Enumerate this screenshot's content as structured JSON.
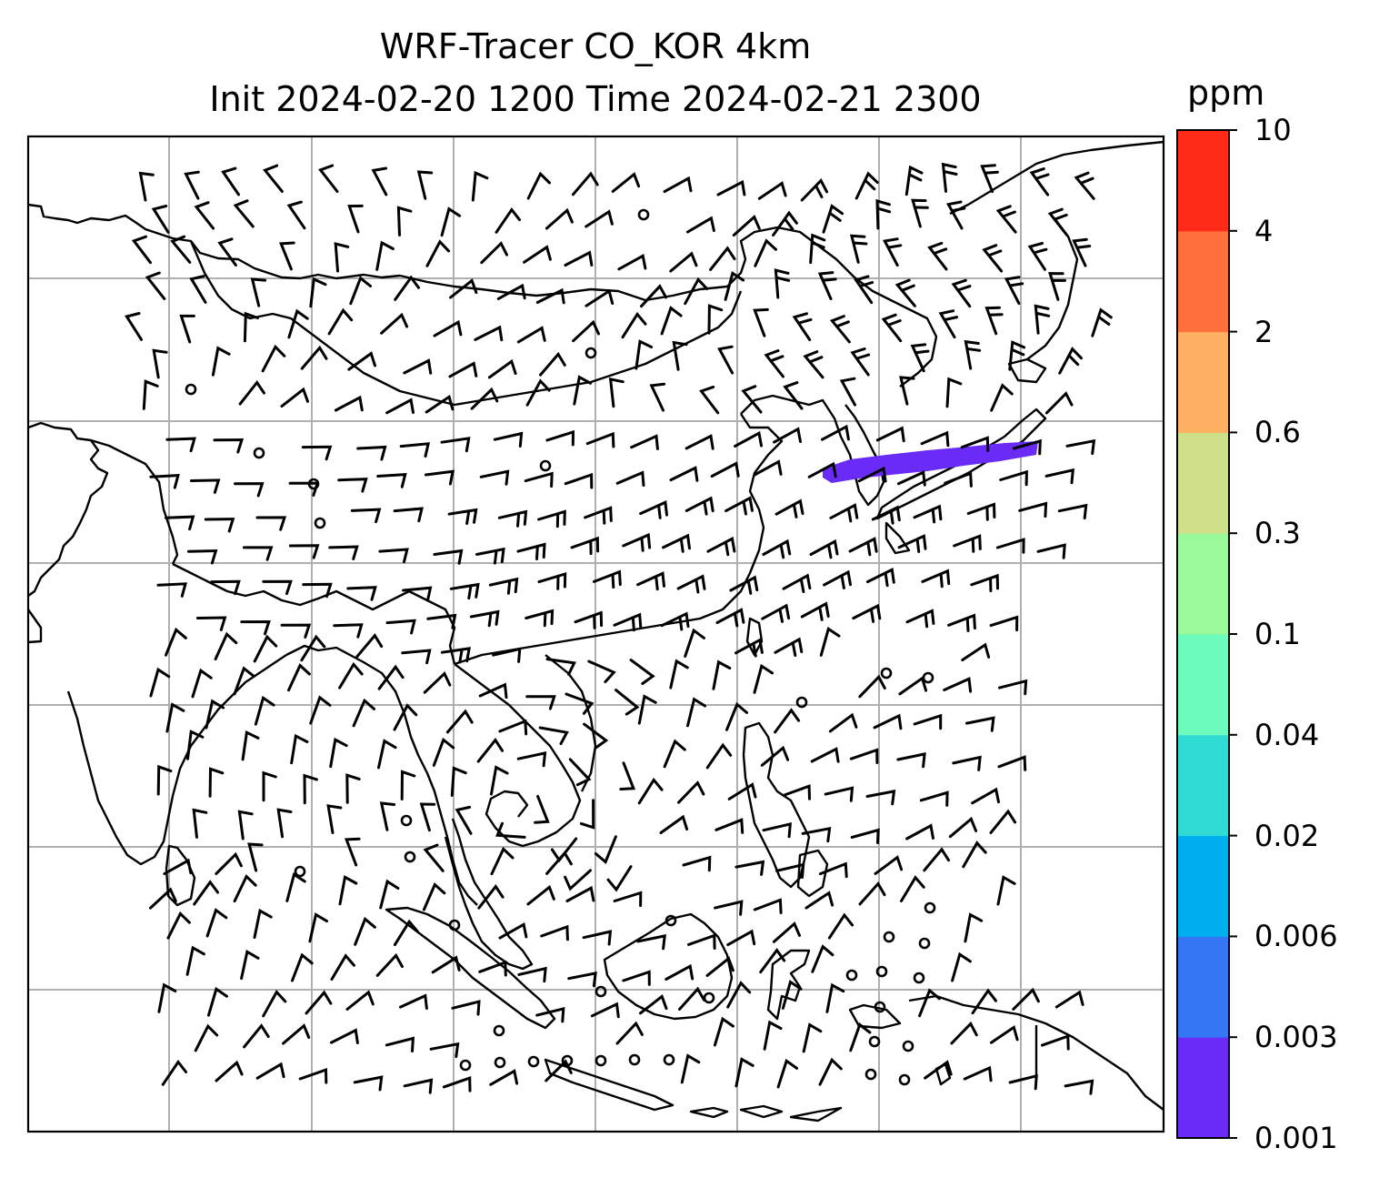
{
  "title": {
    "line1": "WRF-Tracer CO_KOR 4km",
    "line2": "Init 2024-02-20 1200 Time 2024-02-21 2300"
  },
  "colorbar": {
    "unit": "ppm",
    "levels": [
      "0.001",
      "0.003",
      "0.006",
      "0.02",
      "0.04",
      "0.1",
      "0.3",
      "0.6",
      "2",
      "4",
      "10"
    ],
    "colors": [
      "#6a2bf7",
      "#3476f4",
      "#00b0ee",
      "#2fdbd4",
      "#6cfbbd",
      "#9cf99a",
      "#cfe08a",
      "#ffb062",
      "#ff703d",
      "#ff2a17"
    ]
  },
  "map": {
    "plume_color": "#6a2bf7",
    "calm_marker": "circle",
    "barb_color": "#000000",
    "grid_color": "#b0b0b0",
    "coastline_color": "#000000"
  }
}
